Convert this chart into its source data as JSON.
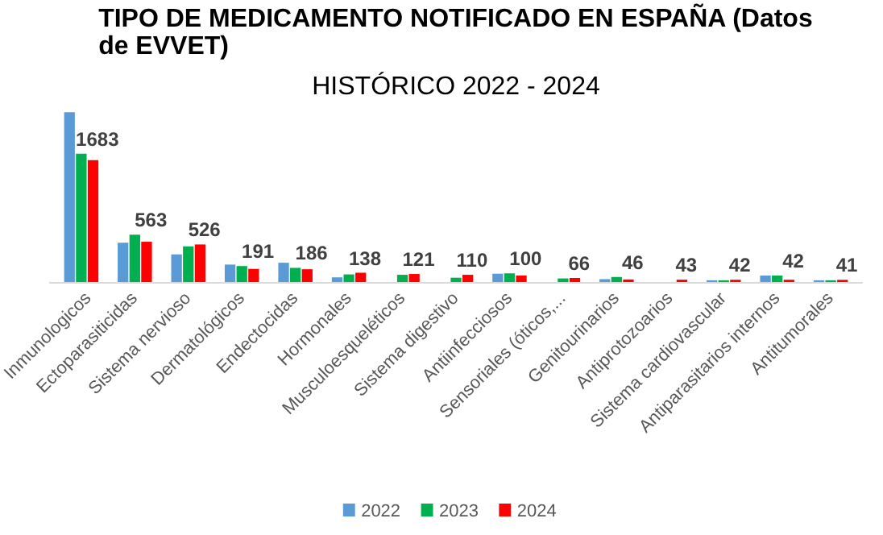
{
  "chart_data": {
    "type": "bar",
    "title": "TIPO DE MEDICAMENTO NOTIFICADO EN ESPAÑA (Datos de EVVET)",
    "subtitle": "HISTÓRICO 2022 - 2024",
    "categories": [
      "Inmunologicos",
      "Ectoparasiticidas",
      "Sistema nervioso",
      "Dermatológicos",
      "Endectocidas",
      "Hormonales",
      "Musculoesqueléticos",
      "Sistema digestivo",
      "Antiinfecciosos",
      "Sensoriales (óticos,...",
      "Genitourinarios",
      "Antiprotozoarios",
      "Sistema cardiovascular",
      "Antiparasitarios internos",
      "Antitumorales"
    ],
    "series": [
      {
        "name": "2022",
        "color": "#5b9bd5",
        "values": [
          2340,
          550,
          390,
          250,
          275,
          75,
          null,
          null,
          125,
          null,
          50,
          null,
          35,
          100,
          35
        ]
      },
      {
        "name": "2023",
        "color": "#00b050",
        "values": [
          1770,
          660,
          500,
          230,
          205,
          115,
          110,
          70,
          130,
          60,
          80,
          null,
          35,
          100,
          35
        ]
      },
      {
        "name": "2024",
        "color": "#ff0000",
        "values": [
          1683,
          563,
          526,
          191,
          186,
          138,
          121,
          110,
          100,
          66,
          46,
          43,
          42,
          42,
          41
        ],
        "value_labels": [
          "1683",
          "563",
          "526",
          "191",
          "186",
          "138",
          "121",
          "110",
          "100",
          "66",
          "46",
          "43",
          "42",
          "42",
          "41"
        ]
      }
    ],
    "legend": "bottom",
    "grid": false
  }
}
